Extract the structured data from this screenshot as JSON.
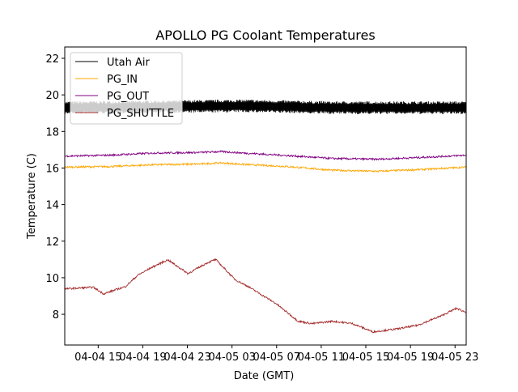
{
  "chart_data": {
    "type": "line",
    "title": "APOLLO PG Coolant Temperatures",
    "xlabel": "Date (GMT)",
    "ylabel": "Temperature (C)",
    "x_unit": "hours since 04-04 00:00 GMT",
    "xlim": [
      12,
      48
    ],
    "ylim": [
      6.32,
      22.62
    ],
    "x_ticks": [
      {
        "value": 15,
        "label": "04-04 15"
      },
      {
        "value": 19,
        "label": "04-04 19"
      },
      {
        "value": 23,
        "label": "04-04 23"
      },
      {
        "value": 27,
        "label": "04-05 03"
      },
      {
        "value": 31,
        "label": "04-05 07"
      },
      {
        "value": 35,
        "label": "04-05 11"
      },
      {
        "value": 39,
        "label": "04-05 15"
      },
      {
        "value": 43,
        "label": "04-05 19"
      },
      {
        "value": 47,
        "label": "04-05 23"
      }
    ],
    "y_ticks": [
      8,
      10,
      12,
      14,
      16,
      18,
      20,
      22
    ],
    "grid": false,
    "legend_position": "top-left",
    "series": [
      {
        "name": "Utah Air",
        "color": "#000000",
        "oscillation": 0.35,
        "x": [
          12,
          20,
          28,
          36,
          44,
          48
        ],
        "y": [
          19.3,
          19.35,
          19.4,
          19.3,
          19.3,
          19.3
        ]
      },
      {
        "name": "PG_IN",
        "color": "#FFA500",
        "oscillation": 0.05,
        "x": [
          12,
          16,
          20,
          24,
          26,
          28,
          32,
          36,
          40,
          44,
          48
        ],
        "y": [
          16.05,
          16.08,
          16.18,
          16.22,
          16.28,
          16.2,
          16.08,
          15.88,
          15.82,
          15.92,
          16.05
        ]
      },
      {
        "name": "PG_OUT",
        "color": "#800080",
        "oscillation": 0.05,
        "x": [
          12,
          16,
          20,
          24,
          26,
          28,
          32,
          36,
          40,
          44,
          48
        ],
        "y": [
          16.65,
          16.7,
          16.82,
          16.85,
          16.9,
          16.82,
          16.68,
          16.52,
          16.48,
          16.58,
          16.7
        ]
      },
      {
        "name": "PG_SHUTTLE",
        "color": "#A52A2A",
        "oscillation": 0.05,
        "x": [
          12,
          14.55,
          15.49,
          17.45,
          18.55,
          19.85,
          21.24,
          23.05,
          24.73,
          25.53,
          27.27,
          28.36,
          30.91,
          32.95,
          34.18,
          36.0,
          37.82,
          39.64,
          41.82,
          43.64,
          45.82,
          47.13,
          48.0
        ],
        "y": [
          9.39,
          9.48,
          9.12,
          9.52,
          10.14,
          10.58,
          10.98,
          10.23,
          10.8,
          11.0,
          9.9,
          9.55,
          8.6,
          7.62,
          7.49,
          7.62,
          7.49,
          7.04,
          7.2,
          7.4,
          7.93,
          8.33,
          8.1
        ]
      }
    ]
  }
}
